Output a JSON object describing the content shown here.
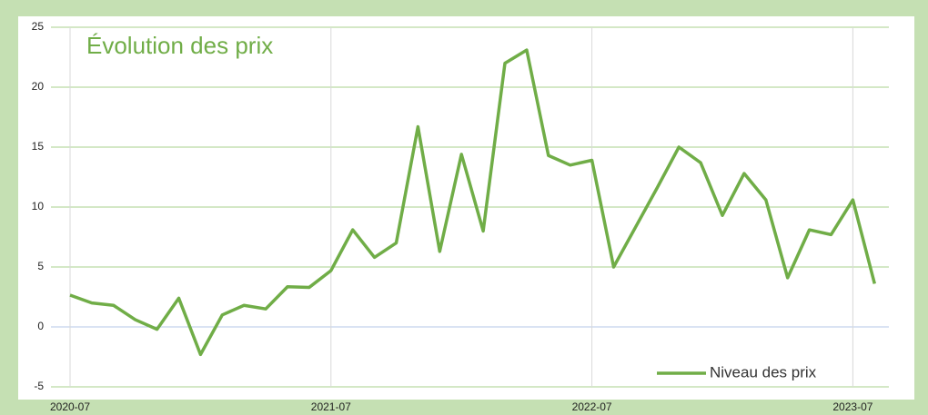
{
  "chart_data": {
    "type": "line",
    "title": "Évolution des prix",
    "categories": [
      "2020-07",
      null,
      null,
      null,
      null,
      null,
      null,
      null,
      null,
      null,
      null,
      null,
      "2021-07",
      null,
      null,
      null,
      null,
      null,
      null,
      null,
      null,
      null,
      null,
      null,
      "2022-07",
      null,
      null,
      null,
      null,
      null,
      null,
      null,
      null,
      null,
      null,
      null,
      "2023-07",
      null
    ],
    "series": [
      {
        "name": "Niveau des prix",
        "color": "#70ad47",
        "values": [
          2.65,
          2.0,
          1.8,
          0.6,
          -0.2,
          2.4,
          -2.3,
          1.0,
          1.8,
          1.5,
          3.35,
          3.3,
          4.7,
          8.1,
          5.8,
          7.0,
          16.7,
          6.3,
          14.4,
          8.0,
          22.0,
          23.1,
          14.3,
          13.5,
          13.9,
          5.0,
          8.3,
          11.6,
          15.0,
          13.7,
          9.3,
          12.8,
          10.6,
          4.1,
          8.1,
          7.7,
          10.6,
          3.6
        ]
      }
    ],
    "ylim": [
      -5,
      25
    ],
    "yticks": [
      -5,
      0,
      5,
      10,
      15,
      20,
      25
    ],
    "grid": true,
    "legend": "bottom-right"
  }
}
